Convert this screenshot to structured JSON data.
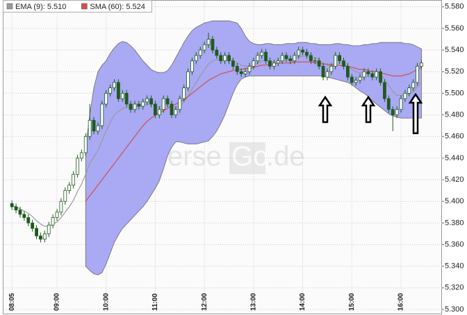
{
  "chart_data": {
    "type": "candlestick",
    "categories": [
      "08:05",
      null,
      null,
      null,
      null,
      null,
      null,
      null,
      null,
      null,
      null,
      "09:00",
      null,
      null,
      null,
      null,
      null,
      null,
      null,
      null,
      null,
      null,
      null,
      "10:00",
      null,
      null,
      null,
      null,
      null,
      null,
      null,
      null,
      null,
      null,
      null,
      "11:00",
      null,
      null,
      null,
      null,
      null,
      null,
      null,
      null,
      null,
      null,
      null,
      "12:00",
      null,
      null,
      null,
      null,
      null,
      null,
      null,
      null,
      null,
      null,
      null,
      "13:00",
      null,
      null,
      null,
      null,
      null,
      null,
      null,
      null,
      null,
      null,
      null,
      "14:00",
      null,
      null,
      null,
      null,
      null,
      null,
      null,
      null,
      null,
      null,
      null,
      "15:00",
      null,
      null,
      null,
      null,
      null,
      null,
      null,
      null,
      null,
      null,
      null,
      "16:00",
      null,
      null,
      null,
      null,
      null
    ],
    "open": [
      5.398,
      5.395,
      5.392,
      5.388,
      5.385,
      5.38,
      5.375,
      5.368,
      5.365,
      5.37,
      5.378,
      5.385,
      5.39,
      5.4,
      5.41,
      5.415,
      5.425,
      5.44,
      5.445,
      5.46,
      5.475,
      5.465,
      5.47,
      5.49,
      5.5,
      5.505,
      5.51,
      5.495,
      5.5,
      5.49,
      5.485,
      5.49,
      5.488,
      5.492,
      5.495,
      5.49,
      5.48,
      5.485,
      5.495,
      5.49,
      5.48,
      5.485,
      5.495,
      5.505,
      5.52,
      5.53,
      5.535,
      5.54,
      5.545,
      5.55,
      5.54,
      5.535,
      5.53,
      5.535,
      5.53,
      5.525,
      5.52,
      5.518,
      5.52,
      5.525,
      5.53,
      5.535,
      5.538,
      5.53,
      5.525,
      5.528,
      5.53,
      5.535,
      5.532,
      5.53,
      5.535,
      5.54,
      5.538,
      5.535,
      5.53,
      5.53,
      5.525,
      5.515,
      5.52,
      5.525,
      5.535,
      5.53,
      5.525,
      5.515,
      5.51,
      5.512,
      5.515,
      5.52,
      5.518,
      5.515,
      5.52,
      5.51,
      5.495,
      5.485,
      5.48,
      5.485,
      5.495,
      5.5,
      5.505,
      5.51,
      5.525
    ],
    "high": [
      5.401,
      5.398,
      5.395,
      5.391,
      5.388,
      5.383,
      5.378,
      5.371,
      5.373,
      5.381,
      5.388,
      5.393,
      5.403,
      5.413,
      5.418,
      5.428,
      5.443,
      5.448,
      5.463,
      5.49,
      5.478,
      5.473,
      5.493,
      5.503,
      5.508,
      5.513,
      5.513,
      5.503,
      5.503,
      5.493,
      5.493,
      5.493,
      5.495,
      5.498,
      5.498,
      5.493,
      5.488,
      5.498,
      5.498,
      5.493,
      5.488,
      5.498,
      5.508,
      5.523,
      5.533,
      5.538,
      5.543,
      5.548,
      5.556,
      5.553,
      5.543,
      5.538,
      5.538,
      5.538,
      5.533,
      5.528,
      5.523,
      5.523,
      5.528,
      5.533,
      5.538,
      5.541,
      5.541,
      5.533,
      5.531,
      5.533,
      5.538,
      5.538,
      5.535,
      5.538,
      5.543,
      5.543,
      5.541,
      5.538,
      5.533,
      5.533,
      5.528,
      5.523,
      5.528,
      5.538,
      5.538,
      5.533,
      5.528,
      5.518,
      5.515,
      5.518,
      5.523,
      5.523,
      5.521,
      5.523,
      5.523,
      5.513,
      5.498,
      5.488,
      5.488,
      5.498,
      5.503,
      5.508,
      5.513,
      5.528,
      5.531
    ],
    "low": [
      5.392,
      5.389,
      5.385,
      5.382,
      5.377,
      5.372,
      5.365,
      5.362,
      5.362,
      5.367,
      5.375,
      5.382,
      5.387,
      5.397,
      5.407,
      5.412,
      5.422,
      5.437,
      5.442,
      5.457,
      5.462,
      5.462,
      5.467,
      5.487,
      5.497,
      5.502,
      5.492,
      5.492,
      5.487,
      5.482,
      5.482,
      5.485,
      5.485,
      5.489,
      5.487,
      5.477,
      5.477,
      5.482,
      5.487,
      5.477,
      5.477,
      5.482,
      5.492,
      5.502,
      5.517,
      5.527,
      5.532,
      5.537,
      5.542,
      5.537,
      5.532,
      5.527,
      5.527,
      5.527,
      5.522,
      5.517,
      5.515,
      5.515,
      5.517,
      5.522,
      5.527,
      5.532,
      5.527,
      5.522,
      5.522,
      5.525,
      5.527,
      5.529,
      5.527,
      5.527,
      5.532,
      5.535,
      5.532,
      5.527,
      5.527,
      5.522,
      5.512,
      5.512,
      5.517,
      5.522,
      5.527,
      5.522,
      5.512,
      5.507,
      5.507,
      5.509,
      5.512,
      5.515,
      5.512,
      5.512,
      5.507,
      5.492,
      5.482,
      5.465,
      5.477,
      5.482,
      5.492,
      5.497,
      5.502,
      5.507,
      5.522
    ],
    "close": [
      5.395,
      5.392,
      5.388,
      5.385,
      5.38,
      5.375,
      5.368,
      5.365,
      5.37,
      5.378,
      5.385,
      5.39,
      5.4,
      5.41,
      5.415,
      5.425,
      5.44,
      5.445,
      5.46,
      5.475,
      5.465,
      5.47,
      5.49,
      5.5,
      5.505,
      5.51,
      5.495,
      5.5,
      5.49,
      5.485,
      5.49,
      5.488,
      5.492,
      5.495,
      5.49,
      5.48,
      5.485,
      5.495,
      5.49,
      5.48,
      5.485,
      5.495,
      5.505,
      5.52,
      5.53,
      5.535,
      5.54,
      5.545,
      5.55,
      5.54,
      5.535,
      5.53,
      5.535,
      5.53,
      5.525,
      5.52,
      5.518,
      5.52,
      5.525,
      5.53,
      5.535,
      5.538,
      5.53,
      5.525,
      5.528,
      5.53,
      5.535,
      5.532,
      5.53,
      5.535,
      5.54,
      5.538,
      5.535,
      5.53,
      5.53,
      5.525,
      5.515,
      5.52,
      5.525,
      5.535,
      5.53,
      5.525,
      5.515,
      5.51,
      5.512,
      5.515,
      5.52,
      5.518,
      5.515,
      5.52,
      5.51,
      5.495,
      5.485,
      5.48,
      5.485,
      5.495,
      5.5,
      5.505,
      5.51,
      5.525,
      5.528
    ],
    "up_color": "#ffffff",
    "down_color": "#1f5a1f",
    "candle_edge": "#1f5a1f",
    "bands": {
      "color": "#a9a9f4",
      "upper": [
        null,
        null,
        null,
        null,
        null,
        null,
        null,
        null,
        null,
        null,
        null,
        null,
        null,
        null,
        null,
        null,
        null,
        null,
        5.45,
        5.48,
        5.505,
        5.52,
        5.526,
        5.53,
        5.537,
        5.542,
        5.546,
        5.548,
        5.547,
        5.544,
        5.54,
        5.535,
        5.53,
        5.526,
        5.522,
        5.52,
        5.519,
        5.519,
        5.521,
        5.526,
        5.533,
        5.54,
        5.547,
        5.553,
        5.558,
        5.561,
        5.563,
        5.565,
        5.566,
        5.567,
        5.567,
        5.567,
        5.567,
        5.567,
        5.566,
        5.565,
        5.56,
        5.553,
        5.548,
        5.546,
        5.545,
        5.545,
        5.546,
        5.546,
        5.545,
        5.545,
        5.545,
        5.546,
        5.546,
        5.546,
        5.547,
        5.547,
        5.547,
        5.546,
        5.546,
        5.545,
        5.545,
        5.545,
        5.545,
        5.546,
        5.546,
        5.545,
        5.545,
        5.544,
        5.544,
        5.544,
        5.545,
        5.545,
        5.546,
        5.546,
        5.547,
        5.547,
        5.547,
        5.547,
        5.547,
        5.547,
        5.546,
        5.546,
        5.545,
        5.543,
        5.541
      ],
      "lower": [
        null,
        null,
        null,
        null,
        null,
        null,
        null,
        null,
        null,
        null,
        null,
        null,
        null,
        null,
        null,
        null,
        null,
        null,
        5.34,
        5.336,
        5.333,
        5.332,
        5.334,
        5.342,
        5.352,
        5.362,
        5.369,
        5.375,
        5.379,
        5.383,
        5.387,
        5.391,
        5.395,
        5.4,
        5.406,
        5.412,
        5.419,
        5.43,
        5.442,
        5.45,
        5.455,
        5.455,
        5.454,
        5.453,
        5.453,
        5.453,
        5.454,
        5.455,
        5.456,
        5.46,
        5.465,
        5.472,
        5.48,
        5.49,
        5.5,
        5.508,
        5.513,
        5.515,
        5.516,
        5.516,
        5.516,
        5.516,
        5.516,
        5.516,
        5.516,
        5.516,
        5.516,
        5.516,
        5.516,
        5.516,
        5.516,
        5.516,
        5.516,
        5.516,
        5.516,
        5.516,
        5.516,
        5.515,
        5.514,
        5.513,
        5.512,
        5.511,
        5.51,
        5.508,
        5.505,
        5.502,
        5.5,
        5.497,
        5.493,
        5.49,
        5.487,
        5.484,
        5.481,
        5.479,
        5.478,
        5.477,
        5.477,
        5.477,
        5.477,
        5.477,
        5.477
      ]
    },
    "series": [
      {
        "name": "EMA (9): 5.510",
        "color": "#9a9a9a",
        "values": [
          5.396,
          5.395,
          5.393,
          5.391,
          5.389,
          5.386,
          5.382,
          5.379,
          5.377,
          5.377,
          5.379,
          5.381,
          5.385,
          5.39,
          5.395,
          5.401,
          5.409,
          5.416,
          5.425,
          5.435,
          5.441,
          5.447,
          5.456,
          5.465,
          5.473,
          5.48,
          5.483,
          5.486,
          5.487,
          5.487,
          5.488,
          5.488,
          5.489,
          5.49,
          5.49,
          5.488,
          5.487,
          5.489,
          5.489,
          5.487,
          5.487,
          5.488,
          5.492,
          5.497,
          5.504,
          5.51,
          5.516,
          5.522,
          5.527,
          5.53,
          5.531,
          5.531,
          5.532,
          5.531,
          5.53,
          5.528,
          5.526,
          5.525,
          5.525,
          5.526,
          5.528,
          5.53,
          5.53,
          5.529,
          5.529,
          5.529,
          5.53,
          5.531,
          5.531,
          5.532,
          5.534,
          5.534,
          5.534,
          5.533,
          5.533,
          5.531,
          5.528,
          5.526,
          5.526,
          5.528,
          5.528,
          5.528,
          5.525,
          5.522,
          5.52,
          5.519,
          5.519,
          5.519,
          5.518,
          5.519,
          5.517,
          5.513,
          5.507,
          5.502,
          5.498,
          5.498,
          5.498,
          5.5,
          5.501,
          5.506,
          5.51
        ]
      },
      {
        "name": "SMA (60): 5.524",
        "color": "#d05050",
        "values": [
          null,
          null,
          null,
          null,
          null,
          null,
          null,
          null,
          null,
          null,
          null,
          null,
          null,
          null,
          null,
          null,
          null,
          null,
          5.4,
          5.405,
          5.41,
          5.415,
          5.42,
          5.425,
          5.43,
          5.435,
          5.44,
          5.445,
          5.45,
          5.455,
          5.46,
          5.465,
          5.47,
          5.474,
          5.477,
          5.48,
          5.482,
          5.484,
          5.486,
          5.488,
          5.49,
          5.492,
          5.494,
          5.497,
          5.5,
          5.503,
          5.506,
          5.509,
          5.512,
          5.514,
          5.516,
          5.518,
          5.519,
          5.52,
          5.521,
          5.522,
          5.522,
          5.523,
          5.523,
          5.524,
          5.525,
          5.526,
          5.526,
          5.527,
          5.527,
          5.528,
          5.528,
          5.528,
          5.528,
          5.529,
          5.529,
          5.529,
          5.529,
          5.529,
          5.528,
          5.528,
          5.527,
          5.527,
          5.526,
          5.526,
          5.526,
          5.525,
          5.525,
          5.524,
          5.523,
          5.522,
          5.522,
          5.521,
          5.52,
          5.52,
          5.519,
          5.518,
          5.517,
          5.516,
          5.516,
          5.516,
          5.517,
          5.518,
          5.52,
          5.522,
          5.524
        ]
      }
    ],
    "ylim": [
      5.3,
      5.585
    ],
    "yticks": [
      {
        "value": 5.3,
        "label": "5.300"
      },
      {
        "value": 5.32,
        "label": "5.320"
      },
      {
        "value": 5.34,
        "label": "5.340"
      },
      {
        "value": 5.36,
        "label": "5.360"
      },
      {
        "value": 5.38,
        "label": "5.380"
      },
      {
        "value": 5.4,
        "label": "5.400"
      },
      {
        "value": 5.42,
        "label": "5.420"
      },
      {
        "value": 5.44,
        "label": "5.440"
      },
      {
        "value": 5.46,
        "label": "5.460"
      },
      {
        "value": 5.48,
        "label": "5.480"
      },
      {
        "value": 5.5,
        "label": "5.500"
      },
      {
        "value": 5.52,
        "label": "5.520"
      },
      {
        "value": 5.54,
        "label": "5.540"
      },
      {
        "value": 5.56,
        "label": "5.560"
      },
      {
        "value": 5.58,
        "label": "5.580"
      }
    ],
    "grid": true,
    "watermark": [
      "Boerse",
      "Go",
      ".de"
    ]
  }
}
